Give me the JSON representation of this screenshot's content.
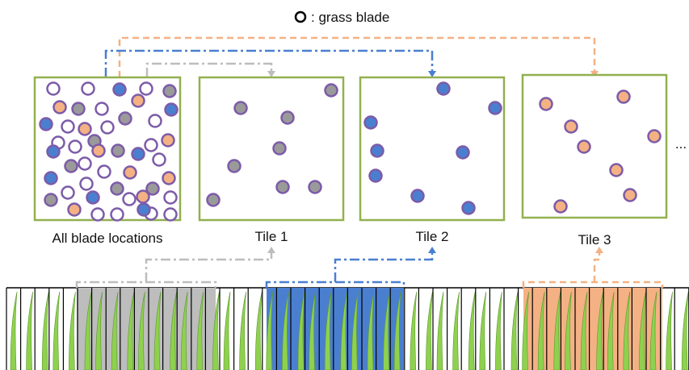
{
  "legend": {
    "text": ": grass blade"
  },
  "panels": [
    {
      "label": "All blade locations"
    },
    {
      "label": "Tile 1"
    },
    {
      "label": "Tile 2"
    },
    {
      "label": "Tile 3"
    }
  ],
  "ellipsis": "..."
}
